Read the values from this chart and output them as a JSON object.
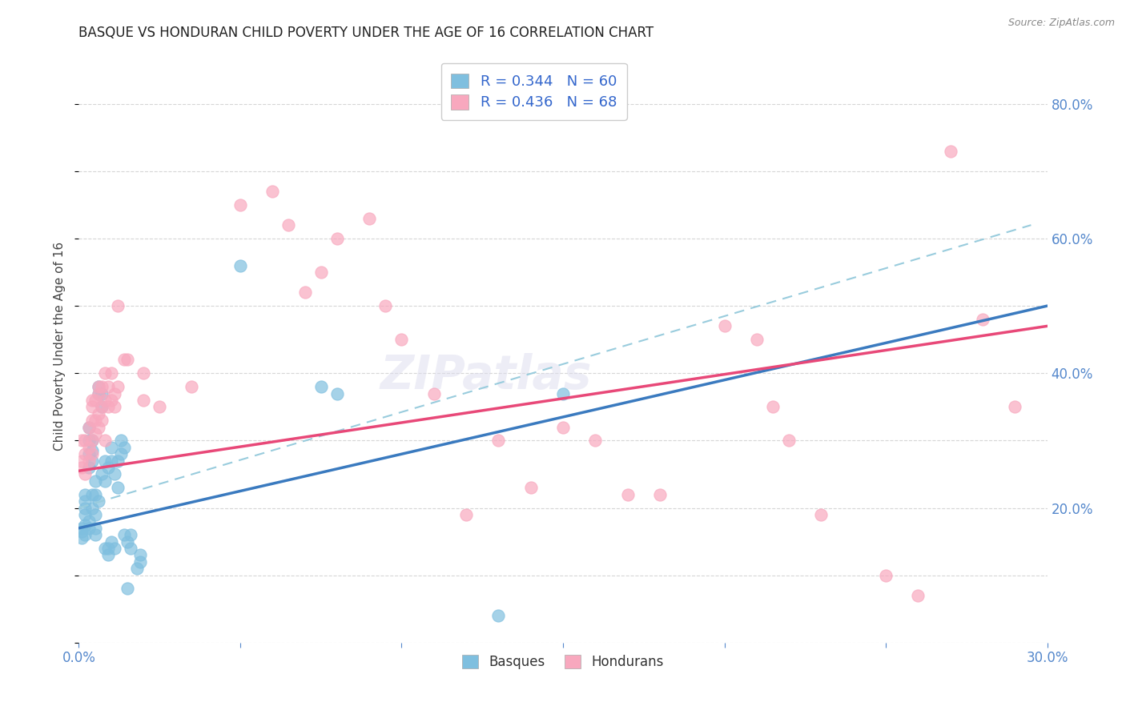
{
  "title": "BASQUE VS HONDURAN CHILD POVERTY UNDER THE AGE OF 16 CORRELATION CHART",
  "source": "Source: ZipAtlas.com",
  "ylabel": "Child Poverty Under the Age of 16",
  "xlim": [
    0.0,
    0.3
  ],
  "ylim": [
    0.0,
    0.88
  ],
  "yticks": [
    0.2,
    0.4,
    0.6,
    0.8
  ],
  "ytick_labels": [
    "20.0%",
    "40.0%",
    "60.0%",
    "80.0%"
  ],
  "xtick_show": [
    0.0,
    0.3
  ],
  "xtick_labels_show": [
    "0.0%",
    "30.0%"
  ],
  "basque_color": "#7fbfdf",
  "honduran_color": "#f8a8be",
  "basque_line_color": "#3a7abf",
  "honduran_line_color": "#e84878",
  "dashed_line_color": "#99ccdd",
  "tick_color": "#5588cc",
  "R_basque": 0.344,
  "N_basque": 60,
  "R_honduran": 0.436,
  "N_honduran": 68,
  "basque_line": [
    0.0,
    0.17,
    0.3,
    0.5
  ],
  "honduran_line": [
    0.0,
    0.255,
    0.3,
    0.47
  ],
  "dashed_line": [
    0.0,
    0.2,
    0.295,
    0.62
  ],
  "basque_points": [
    [
      0.001,
      0.17
    ],
    [
      0.001,
      0.155
    ],
    [
      0.001,
      0.165
    ],
    [
      0.002,
      0.16
    ],
    [
      0.002,
      0.175
    ],
    [
      0.002,
      0.19
    ],
    [
      0.002,
      0.21
    ],
    [
      0.002,
      0.22
    ],
    [
      0.002,
      0.2
    ],
    [
      0.003,
      0.18
    ],
    [
      0.003,
      0.17
    ],
    [
      0.003,
      0.26
    ],
    [
      0.003,
      0.28
    ],
    [
      0.003,
      0.3
    ],
    [
      0.003,
      0.32
    ],
    [
      0.004,
      0.2
    ],
    [
      0.004,
      0.22
    ],
    [
      0.004,
      0.3
    ],
    [
      0.004,
      0.285
    ],
    [
      0.004,
      0.27
    ],
    [
      0.005,
      0.16
    ],
    [
      0.005,
      0.17
    ],
    [
      0.005,
      0.19
    ],
    [
      0.005,
      0.22
    ],
    [
      0.005,
      0.24
    ],
    [
      0.006,
      0.21
    ],
    [
      0.006,
      0.38
    ],
    [
      0.006,
      0.37
    ],
    [
      0.007,
      0.25
    ],
    [
      0.007,
      0.35
    ],
    [
      0.007,
      0.37
    ],
    [
      0.008,
      0.27
    ],
    [
      0.008,
      0.24
    ],
    [
      0.008,
      0.14
    ],
    [
      0.009,
      0.26
    ],
    [
      0.009,
      0.14
    ],
    [
      0.009,
      0.13
    ],
    [
      0.01,
      0.15
    ],
    [
      0.01,
      0.27
    ],
    [
      0.01,
      0.29
    ],
    [
      0.011,
      0.14
    ],
    [
      0.011,
      0.25
    ],
    [
      0.012,
      0.23
    ],
    [
      0.012,
      0.27
    ],
    [
      0.013,
      0.28
    ],
    [
      0.013,
      0.3
    ],
    [
      0.014,
      0.29
    ],
    [
      0.014,
      0.16
    ],
    [
      0.015,
      0.08
    ],
    [
      0.015,
      0.15
    ],
    [
      0.016,
      0.14
    ],
    [
      0.016,
      0.16
    ],
    [
      0.018,
      0.11
    ],
    [
      0.019,
      0.13
    ],
    [
      0.019,
      0.12
    ],
    [
      0.05,
      0.56
    ],
    [
      0.075,
      0.38
    ],
    [
      0.08,
      0.37
    ],
    [
      0.13,
      0.04
    ],
    [
      0.15,
      0.37
    ]
  ],
  "honduran_points": [
    [
      0.001,
      0.26
    ],
    [
      0.001,
      0.27
    ],
    [
      0.001,
      0.3
    ],
    [
      0.002,
      0.25
    ],
    [
      0.002,
      0.28
    ],
    [
      0.002,
      0.3
    ],
    [
      0.003,
      0.27
    ],
    [
      0.003,
      0.29
    ],
    [
      0.003,
      0.32
    ],
    [
      0.004,
      0.28
    ],
    [
      0.004,
      0.3
    ],
    [
      0.004,
      0.33
    ],
    [
      0.004,
      0.35
    ],
    [
      0.004,
      0.36
    ],
    [
      0.005,
      0.31
    ],
    [
      0.005,
      0.33
    ],
    [
      0.005,
      0.36
    ],
    [
      0.006,
      0.32
    ],
    [
      0.006,
      0.34
    ],
    [
      0.006,
      0.37
    ],
    [
      0.006,
      0.38
    ],
    [
      0.007,
      0.33
    ],
    [
      0.007,
      0.35
    ],
    [
      0.007,
      0.38
    ],
    [
      0.008,
      0.3
    ],
    [
      0.008,
      0.36
    ],
    [
      0.008,
      0.4
    ],
    [
      0.009,
      0.35
    ],
    [
      0.009,
      0.38
    ],
    [
      0.01,
      0.36
    ],
    [
      0.01,
      0.4
    ],
    [
      0.011,
      0.35
    ],
    [
      0.011,
      0.37
    ],
    [
      0.012,
      0.38
    ],
    [
      0.012,
      0.5
    ],
    [
      0.014,
      0.42
    ],
    [
      0.015,
      0.42
    ],
    [
      0.02,
      0.36
    ],
    [
      0.02,
      0.4
    ],
    [
      0.025,
      0.35
    ],
    [
      0.035,
      0.38
    ],
    [
      0.05,
      0.65
    ],
    [
      0.06,
      0.67
    ],
    [
      0.065,
      0.62
    ],
    [
      0.07,
      0.52
    ],
    [
      0.075,
      0.55
    ],
    [
      0.08,
      0.6
    ],
    [
      0.09,
      0.63
    ],
    [
      0.095,
      0.5
    ],
    [
      0.1,
      0.45
    ],
    [
      0.11,
      0.37
    ],
    [
      0.12,
      0.19
    ],
    [
      0.13,
      0.3
    ],
    [
      0.14,
      0.23
    ],
    [
      0.15,
      0.32
    ],
    [
      0.16,
      0.3
    ],
    [
      0.17,
      0.22
    ],
    [
      0.18,
      0.22
    ],
    [
      0.2,
      0.47
    ],
    [
      0.21,
      0.45
    ],
    [
      0.215,
      0.35
    ],
    [
      0.22,
      0.3
    ],
    [
      0.23,
      0.19
    ],
    [
      0.25,
      0.1
    ],
    [
      0.26,
      0.07
    ],
    [
      0.27,
      0.73
    ],
    [
      0.28,
      0.48
    ],
    [
      0.29,
      0.35
    ]
  ]
}
